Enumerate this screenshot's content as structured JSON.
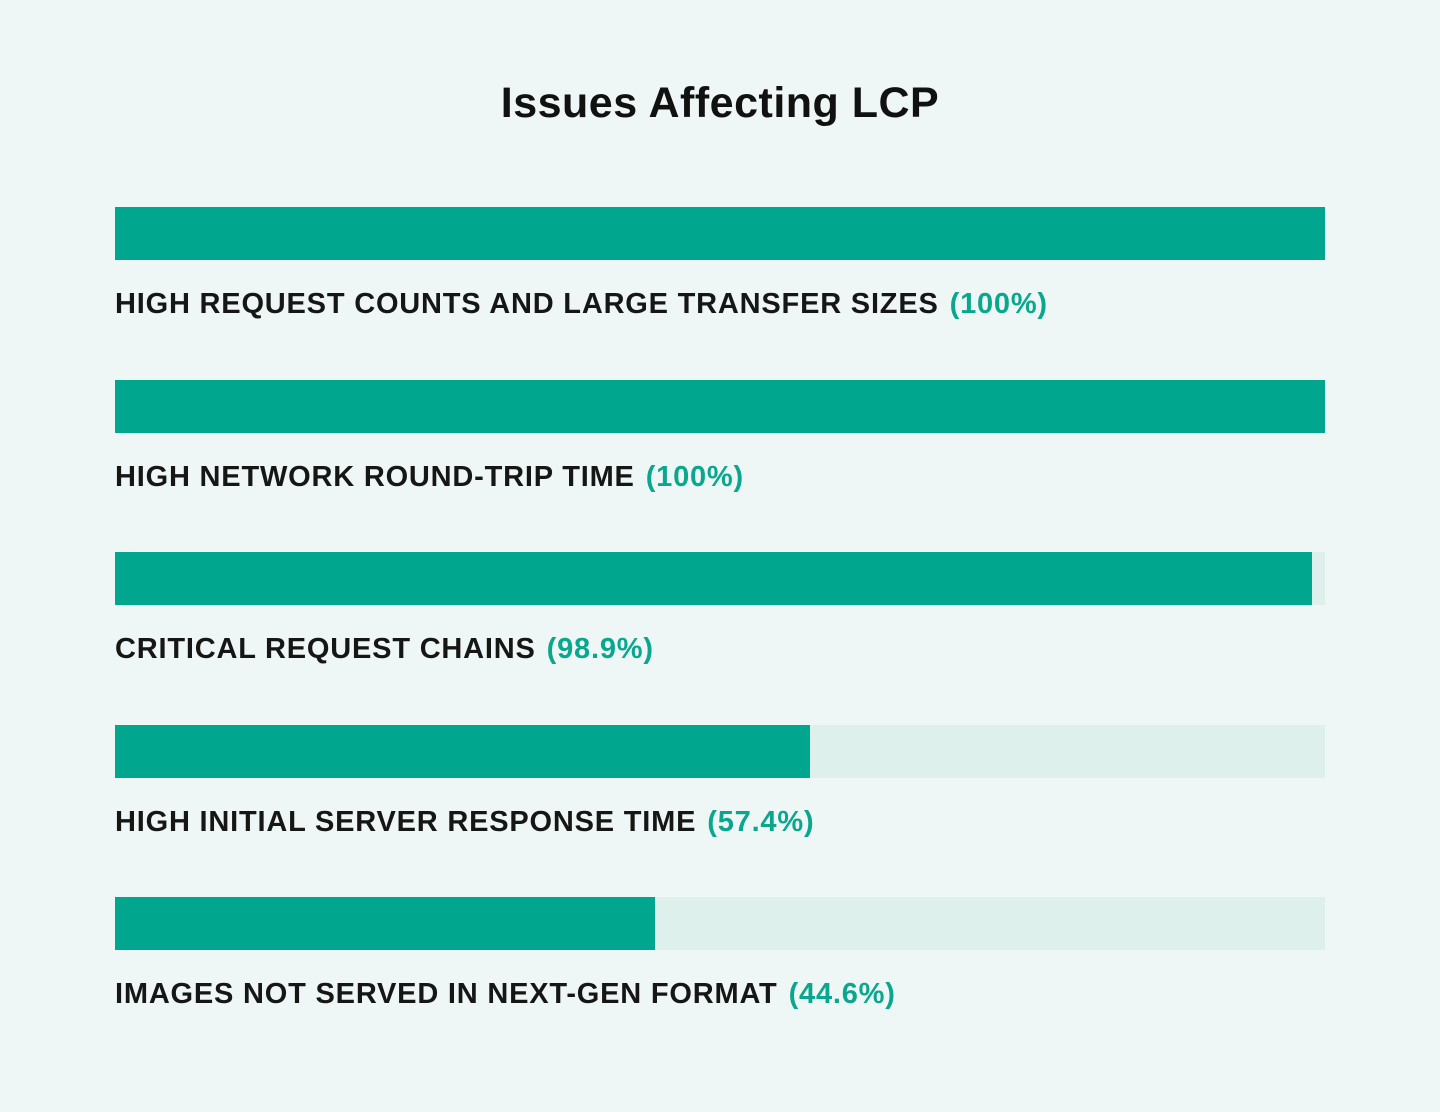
{
  "title": "Issues Affecting LCP",
  "colors": {
    "background": "#eef7f5",
    "bar": "#00a78e",
    "track": "#ddf0ec",
    "label_text": "#161616",
    "percent_text": "#0aa78e",
    "title_text": "#111111"
  },
  "chart_data": {
    "type": "bar",
    "orientation": "horizontal",
    "title": "Issues Affecting LCP",
    "xlabel": "",
    "ylabel": "",
    "xlim": [
      0,
      100
    ],
    "grid": false,
    "legend": false,
    "categories": [
      "HIGH REQUEST COUNTS AND LARGE TRANSFER SIZES",
      "HIGH NETWORK ROUND-TRIP TIME",
      "CRITICAL REQUEST CHAINS",
      "HIGH INITIAL SERVER RESPONSE TIME",
      "IMAGES NOT SERVED IN NEXT-GEN FORMAT"
    ],
    "values": [
      100,
      100,
      98.9,
      57.4,
      44.6
    ],
    "rows": [
      {
        "label": "HIGH REQUEST COUNTS AND LARGE TRANSFER SIZES",
        "percent": "(100%)",
        "value": 100
      },
      {
        "label": "HIGH NETWORK ROUND-TRIP TIME",
        "percent": "(100%)",
        "value": 100
      },
      {
        "label": "CRITICAL REQUEST CHAINS",
        "percent": "(98.9%)",
        "value": 98.9
      },
      {
        "label": "HIGH INITIAL SERVER RESPONSE TIME",
        "percent": "(57.4%)",
        "value": 57.4
      },
      {
        "label": "IMAGES NOT SERVED IN NEXT-GEN FORMAT",
        "percent": "(44.6%)",
        "value": 44.6
      }
    ]
  }
}
